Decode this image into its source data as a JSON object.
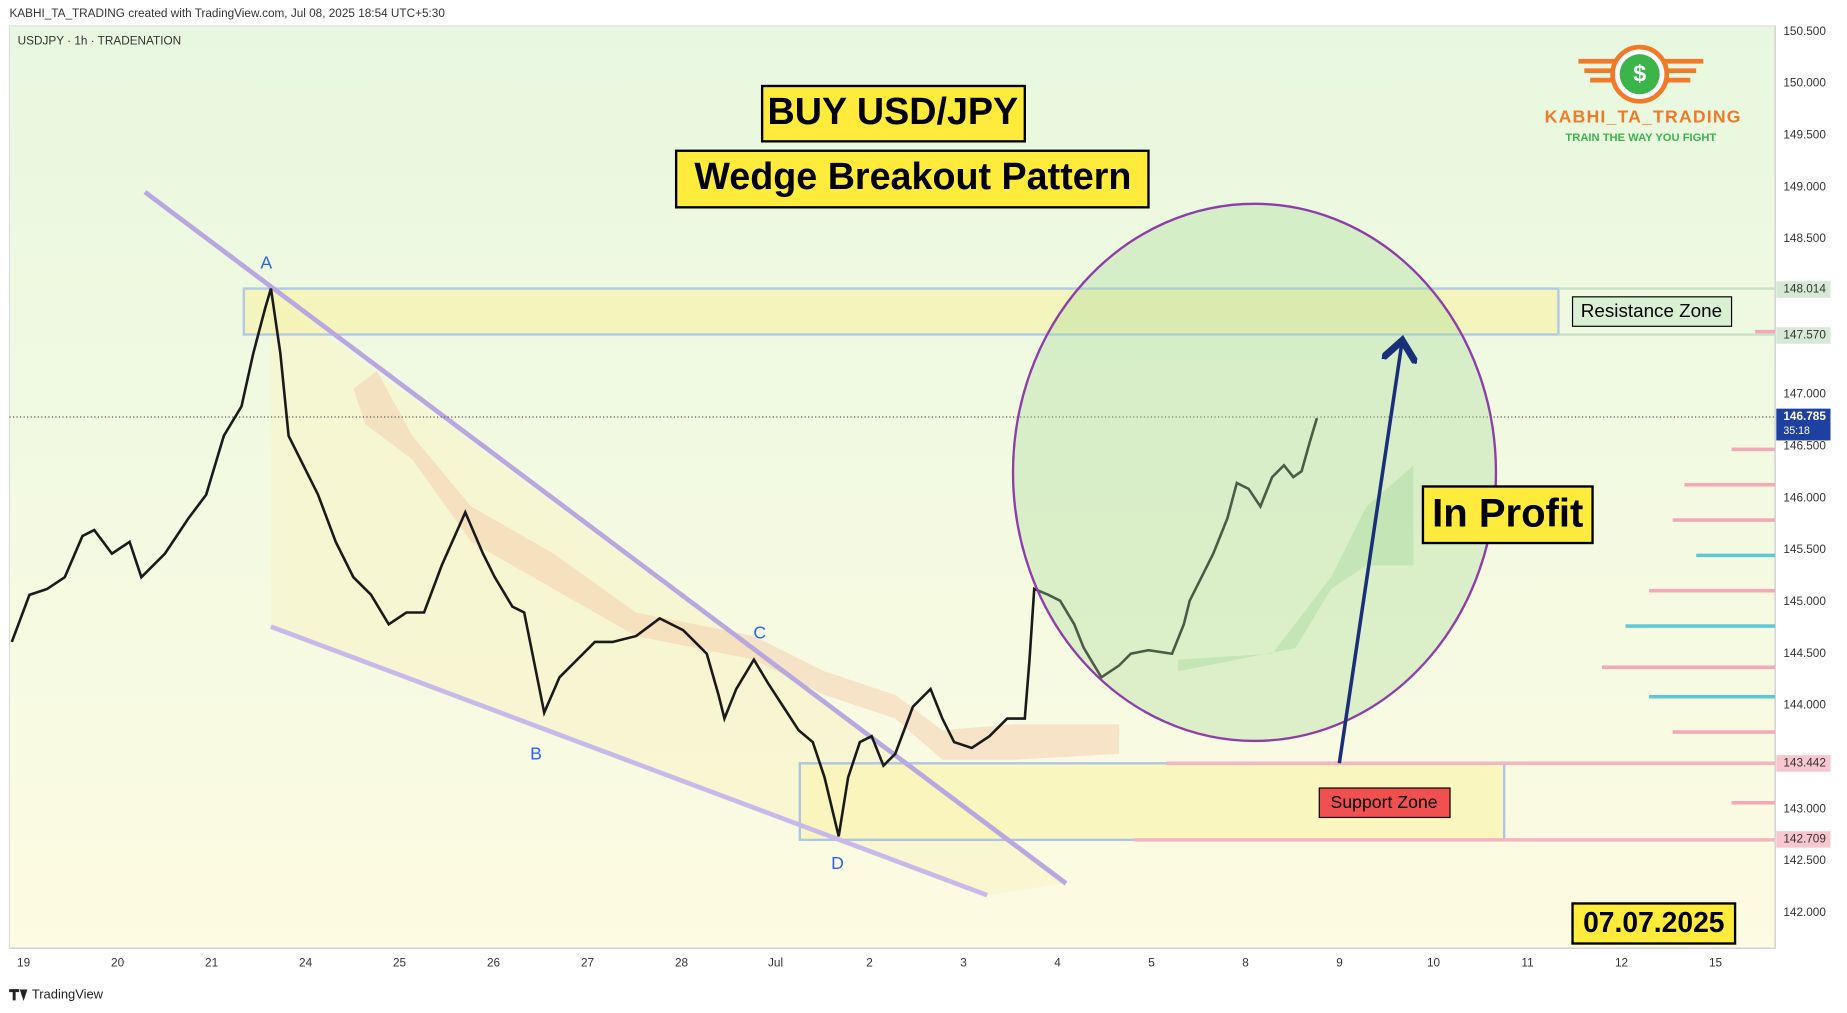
{
  "header": {
    "credit": "KABHI_TA_TRADING created with TradingView.com, Jul 08, 2025 18:54 UTC+5:30",
    "symbol": "USDJPY · 1h · TRADENATION"
  },
  "logo": {
    "icon": "$",
    "name": "KABHI_TA_TRADING",
    "tagline": "TRAIN THE WAY YOU FIGHT"
  },
  "annotations": {
    "title": "BUY USD/JPY",
    "subtitle": "Wedge Breakout Pattern",
    "profit": "In Profit",
    "resistance": "Resistance Zone",
    "support": "Support Zone",
    "date": "07.07.2025",
    "points": [
      "A",
      "B",
      "C",
      "D"
    ]
  },
  "price_axis": {
    "ticks": [
      "150.500",
      "150.000",
      "149.500",
      "149.000",
      "148.500",
      "147.000",
      "146.500",
      "146.000",
      "145.500",
      "145.000",
      "144.500",
      "144.000",
      "143.000",
      "142.500",
      "142.000"
    ],
    "tags": {
      "resistance_top": "148.014",
      "resistance_bottom": "147.570",
      "current": "146.785",
      "countdown": "35:18",
      "support_top": "143.442",
      "support_bottom": "142.709"
    }
  },
  "time_axis": {
    "ticks": [
      "19",
      "20",
      "21",
      "24",
      "25",
      "26",
      "27",
      "28",
      "Jul",
      "2",
      "3",
      "4",
      "5",
      "8",
      "9",
      "10",
      "11",
      "12",
      "15"
    ]
  },
  "footer": {
    "brand": "TradingView"
  }
}
